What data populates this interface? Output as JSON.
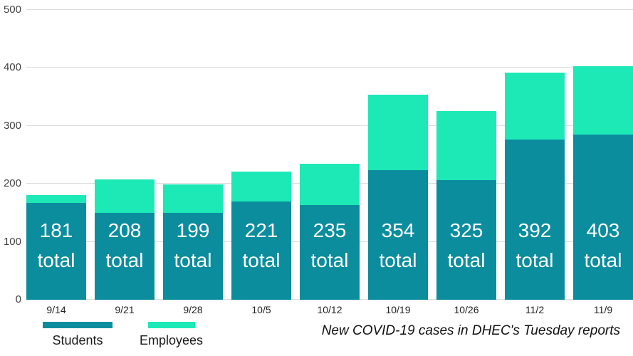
{
  "colors": {
    "background": "#ffffff",
    "grid": "#dcdcdc",
    "axis_label": "#404040",
    "bar_label_text": "#ffffff",
    "legend_text": "#1a1a1a",
    "caption_text": "#111111",
    "students": "#0b8d9e",
    "employees": "#1de9b6"
  },
  "chart_data": {
    "type": "bar",
    "stacked": true,
    "caption": "New COVID-19 cases in DHEC's Tuesday reports",
    "categories": [
      "9/14",
      "9/21",
      "9/28",
      "10/5",
      "10/12",
      "10/19",
      "10/26",
      "11/2",
      "11/9"
    ],
    "series": [
      {
        "name": "Students",
        "color": "#0b8d9e",
        "values": [
          167,
          150,
          150,
          170,
          163,
          223,
          207,
          277,
          285
        ]
      },
      {
        "name": "Employees",
        "color": "#1de9b6",
        "values": [
          14,
          58,
          49,
          51,
          72,
          131,
          118,
          115,
          118
        ]
      }
    ],
    "totals": [
      181,
      208,
      199,
      221,
      235,
      354,
      325,
      392,
      403
    ],
    "total_label_suffix": "total",
    "ylim": [
      0,
      500
    ],
    "yticks": [
      0,
      100,
      200,
      300,
      400,
      500
    ],
    "grid": true,
    "legend": [
      "Students",
      "Employees"
    ],
    "legend_position": "bottom-left"
  }
}
